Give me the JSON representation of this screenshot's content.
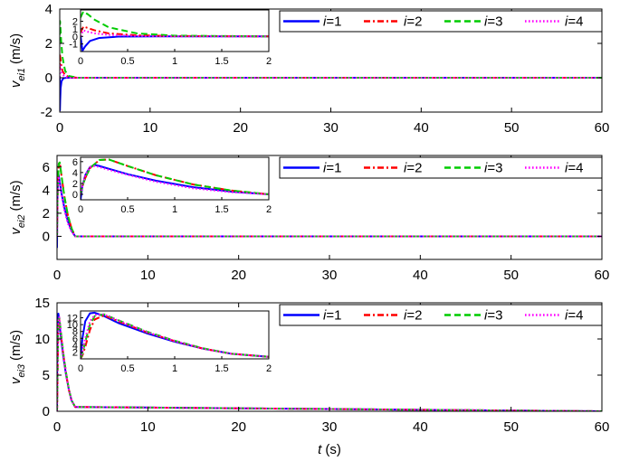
{
  "chart_data": [
    {
      "type": "line",
      "ylabel": {
        "main": "v",
        "sub": "ei1",
        "unit": "(m/s)"
      },
      "xlabel": "",
      "xlim": [
        0,
        60
      ],
      "ylim": [
        -2,
        4
      ],
      "x_ticks": [
        "0",
        "10",
        "20",
        "30",
        "40",
        "50",
        "60"
      ],
      "y_ticks": [
        "-2",
        "0",
        "2",
        "4"
      ],
      "legend_position": "top-right",
      "series": [
        {
          "name": "i=1",
          "color": "#0000ff",
          "dash": "solid",
          "x": [
            0,
            0.02,
            0.05,
            0.1,
            0.2,
            0.4,
            0.8,
            1.2,
            2,
            60
          ],
          "y": [
            0.1,
            -1.9,
            -1.3,
            -0.6,
            -0.2,
            -0.03,
            0,
            0,
            0,
            0
          ]
        },
        {
          "name": "i=2",
          "color": "#ff0000",
          "dash": "dashdot",
          "x": [
            0,
            0.03,
            0.08,
            0.15,
            0.3,
            0.6,
            1,
            2,
            60
          ],
          "y": [
            0.5,
            1.3,
            1.1,
            0.8,
            0.4,
            0.15,
            0.05,
            0,
            0
          ]
        },
        {
          "name": "i=3",
          "color": "#00cc00",
          "dash": "dashed",
          "x": [
            0,
            0.03,
            0.08,
            0.15,
            0.3,
            0.6,
            1,
            2,
            60
          ],
          "y": [
            2.5,
            3.3,
            2.9,
            2.2,
            1.2,
            0.4,
            0.1,
            0,
            0
          ]
        },
        {
          "name": "i=4",
          "color": "#ff00ff",
          "dash": "dotted",
          "x": [
            0,
            0.03,
            0.08,
            0.15,
            0.3,
            0.6,
            1,
            2,
            60
          ],
          "y": [
            0,
            0.8,
            0.6,
            0.4,
            0.2,
            0.05,
            0,
            0,
            0
          ]
        }
      ],
      "inset": {
        "xlim": [
          0,
          2
        ],
        "ylim": [
          -2,
          3.5
        ],
        "x_ticks": [
          "0",
          "0.5",
          "1",
          "1.5",
          "2"
        ],
        "y_ticks": [
          "-1",
          "0",
          "1",
          "2"
        ]
      }
    },
    {
      "type": "line",
      "ylabel": {
        "main": "v",
        "sub": "ei2",
        "unit": "(m/s)"
      },
      "xlabel": "",
      "xlim": [
        0,
        60
      ],
      "ylim": [
        -2,
        7
      ],
      "x_ticks": [
        "0",
        "10",
        "20",
        "30",
        "40",
        "50",
        "60"
      ],
      "y_ticks": [
        "0",
        "2",
        "4",
        "6"
      ],
      "legend_position": "top-right",
      "series": [
        {
          "name": "i=1",
          "color": "#0000ff",
          "dash": "solid",
          "x": [
            0,
            0.02,
            0.05,
            0.1,
            0.15,
            0.2,
            0.3,
            0.5,
            0.8,
            1.2,
            1.6,
            2,
            60
          ],
          "y": [
            -1,
            1.5,
            3.5,
            5,
            5.4,
            5.2,
            4.7,
            3.7,
            2.5,
            1.3,
            0.5,
            0,
            0
          ]
        },
        {
          "name": "i=2",
          "color": "#ff0000",
          "dash": "dashdot",
          "x": [
            0,
            0.02,
            0.05,
            0.1,
            0.2,
            0.3,
            0.5,
            0.8,
            1.2,
            1.6,
            2,
            60
          ],
          "y": [
            0,
            1.5,
            3,
            4.8,
            6.3,
            6.4,
            5.2,
            3.5,
            1.8,
            0.7,
            0,
            0
          ]
        },
        {
          "name": "i=3",
          "color": "#00cc00",
          "dash": "dashed",
          "x": [
            0,
            0.02,
            0.05,
            0.1,
            0.2,
            0.3,
            0.5,
            0.8,
            1.2,
            1.6,
            2,
            60
          ],
          "y": [
            0,
            1.5,
            3,
            4.8,
            6.3,
            6.4,
            5.2,
            3.5,
            1.8,
            0.7,
            0,
            0
          ]
        },
        {
          "name": "i=4",
          "color": "#ff00ff",
          "dash": "dotted",
          "x": [
            0,
            0.02,
            0.05,
            0.1,
            0.15,
            0.2,
            0.3,
            0.5,
            0.8,
            1.2,
            1.6,
            2,
            60
          ],
          "y": [
            0,
            1.5,
            3.5,
            5,
            5.2,
            5,
            4.5,
            3.6,
            2.3,
            1.1,
            0.4,
            0,
            0
          ]
        }
      ],
      "inset": {
        "xlim": [
          0,
          2
        ],
        "ylim": [
          -1,
          6.8
        ],
        "x_ticks": [
          "0",
          "0.5",
          "1",
          "1.5",
          "2"
        ],
        "y_ticks": [
          "0",
          "2",
          "4",
          "6"
        ]
      }
    },
    {
      "type": "line",
      "ylabel": {
        "main": "v",
        "sub": "ei3",
        "unit": "(m/s)"
      },
      "xlabel": {
        "var": "t",
        "unit": "(s)"
      },
      "xlim": [
        0,
        60
      ],
      "ylim": [
        0,
        15
      ],
      "x_ticks": [
        "0",
        "10",
        "20",
        "30",
        "40",
        "50",
        "60"
      ],
      "y_ticks": [
        "0",
        "5",
        "10",
        "15"
      ],
      "legend_position": "top-right",
      "series": [
        {
          "name": "i=1",
          "color": "#0000ff",
          "dash": "solid",
          "x": [
            0,
            0.02,
            0.05,
            0.1,
            0.15,
            0.25,
            0.4,
            0.7,
            1,
            1.3,
            1.6,
            2,
            60
          ],
          "y": [
            0,
            6,
            11,
            13.3,
            13.5,
            12.5,
            10.5,
            7.5,
            5,
            3,
            1.5,
            0.6,
            0
          ]
        },
        {
          "name": "i=2",
          "color": "#ff0000",
          "dash": "dashdot",
          "x": [
            0,
            0.02,
            0.05,
            0.1,
            0.15,
            0.25,
            0.4,
            0.7,
            1,
            1.3,
            1.6,
            2,
            60
          ],
          "y": [
            0,
            1,
            3.5,
            8.5,
            11.5,
            12.7,
            11,
            7.8,
            5.2,
            3,
            1.5,
            0.6,
            0
          ]
        },
        {
          "name": "i=3",
          "color": "#00cc00",
          "dash": "dashed",
          "x": [
            0,
            0.02,
            0.05,
            0.1,
            0.15,
            0.25,
            0.4,
            0.7,
            1,
            1.3,
            1.6,
            2,
            60
          ],
          "y": [
            0,
            1.5,
            5,
            10,
            12.5,
            13,
            11.3,
            8,
            5.3,
            3.1,
            1.5,
            0.6,
            0
          ]
        },
        {
          "name": "i=4",
          "color": "#ff00ff",
          "dash": "dotted",
          "x": [
            0,
            0.02,
            0.05,
            0.1,
            0.15,
            0.25,
            0.4,
            0.7,
            1,
            1.3,
            1.6,
            2,
            60
          ],
          "y": [
            0,
            2,
            6,
            11,
            12.8,
            13,
            11.2,
            7.9,
            5.2,
            3,
            1.5,
            0.6,
            0
          ]
        }
      ],
      "inset": {
        "xlim": [
          0,
          2
        ],
        "ylim": [
          0,
          14
        ],
        "x_ticks": [
          "0",
          "0.5",
          "1",
          "1.5",
          "2"
        ],
        "y_ticks": [
          "2",
          "4",
          "6",
          "8",
          "10",
          "12"
        ]
      }
    }
  ]
}
